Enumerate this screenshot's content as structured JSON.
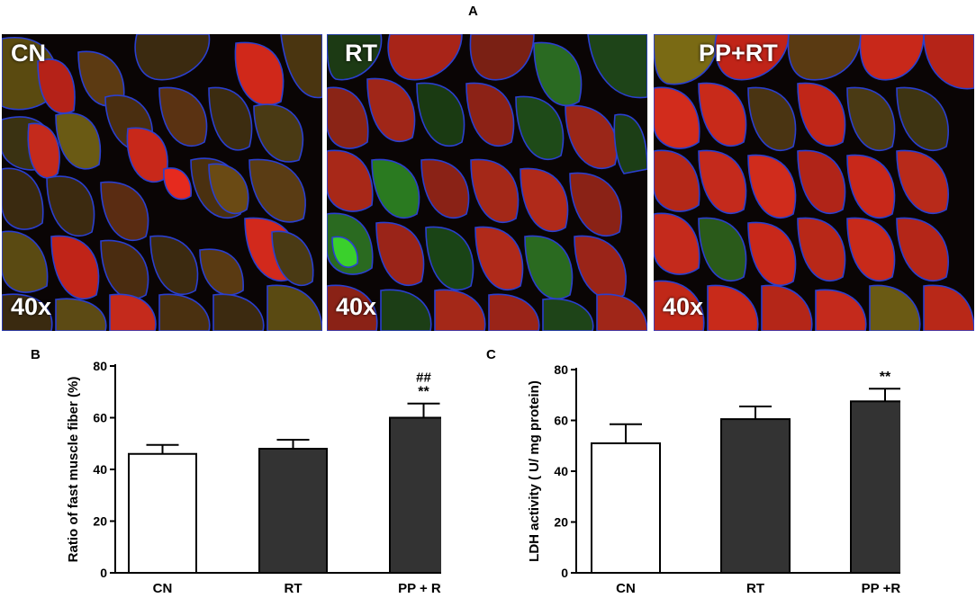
{
  "figure": {
    "panel_a_letter": "A",
    "panel_b_letter": "B",
    "panel_c_letter": "C"
  },
  "micrographs": [
    {
      "group_label": "CN",
      "magnification": "40x"
    },
    {
      "group_label": "RT",
      "magnification": "40x"
    },
    {
      "group_label": "PP+RT",
      "magnification": "40x"
    }
  ],
  "colors": {
    "bar_open": "#ffffff",
    "bar_filled": "#333333",
    "fiber_red": "#c8231a",
    "fiber_green": "#2f8a2a",
    "nuclei_blue": "#2035d0"
  },
  "chart_data": [
    {
      "type": "bar",
      "panel": "B",
      "categories": [
        "CN",
        "RT",
        "PP + RT"
      ],
      "values": [
        46,
        48,
        60
      ],
      "errors": [
        3.5,
        3.5,
        5.5
      ],
      "annotations": [
        "",
        "",
        "**"
      ],
      "annotations_top": [
        "",
        "",
        "##"
      ],
      "title": "",
      "xlabel": "",
      "ylabel": "Ratio of fast muscle fiber (%)",
      "ylim": [
        0,
        80
      ],
      "yticks": [
        0,
        20,
        40,
        60,
        80
      ],
      "bar_styles": [
        "open",
        "filled",
        "filled"
      ],
      "grid": false
    },
    {
      "type": "bar",
      "panel": "C",
      "categories": [
        "CN",
        "RT",
        "PP +RT"
      ],
      "values": [
        51,
        60.5,
        67.5
      ],
      "errors": [
        7.5,
        5,
        5
      ],
      "annotations": [
        "",
        "",
        "**"
      ],
      "title": "",
      "xlabel": "",
      "ylabel": "LDH activity ( U/ mg protein)",
      "ylim": [
        0,
        80
      ],
      "yticks": [
        0,
        20,
        40,
        60,
        80
      ],
      "bar_styles": [
        "open",
        "filled",
        "filled"
      ],
      "grid": false
    }
  ]
}
